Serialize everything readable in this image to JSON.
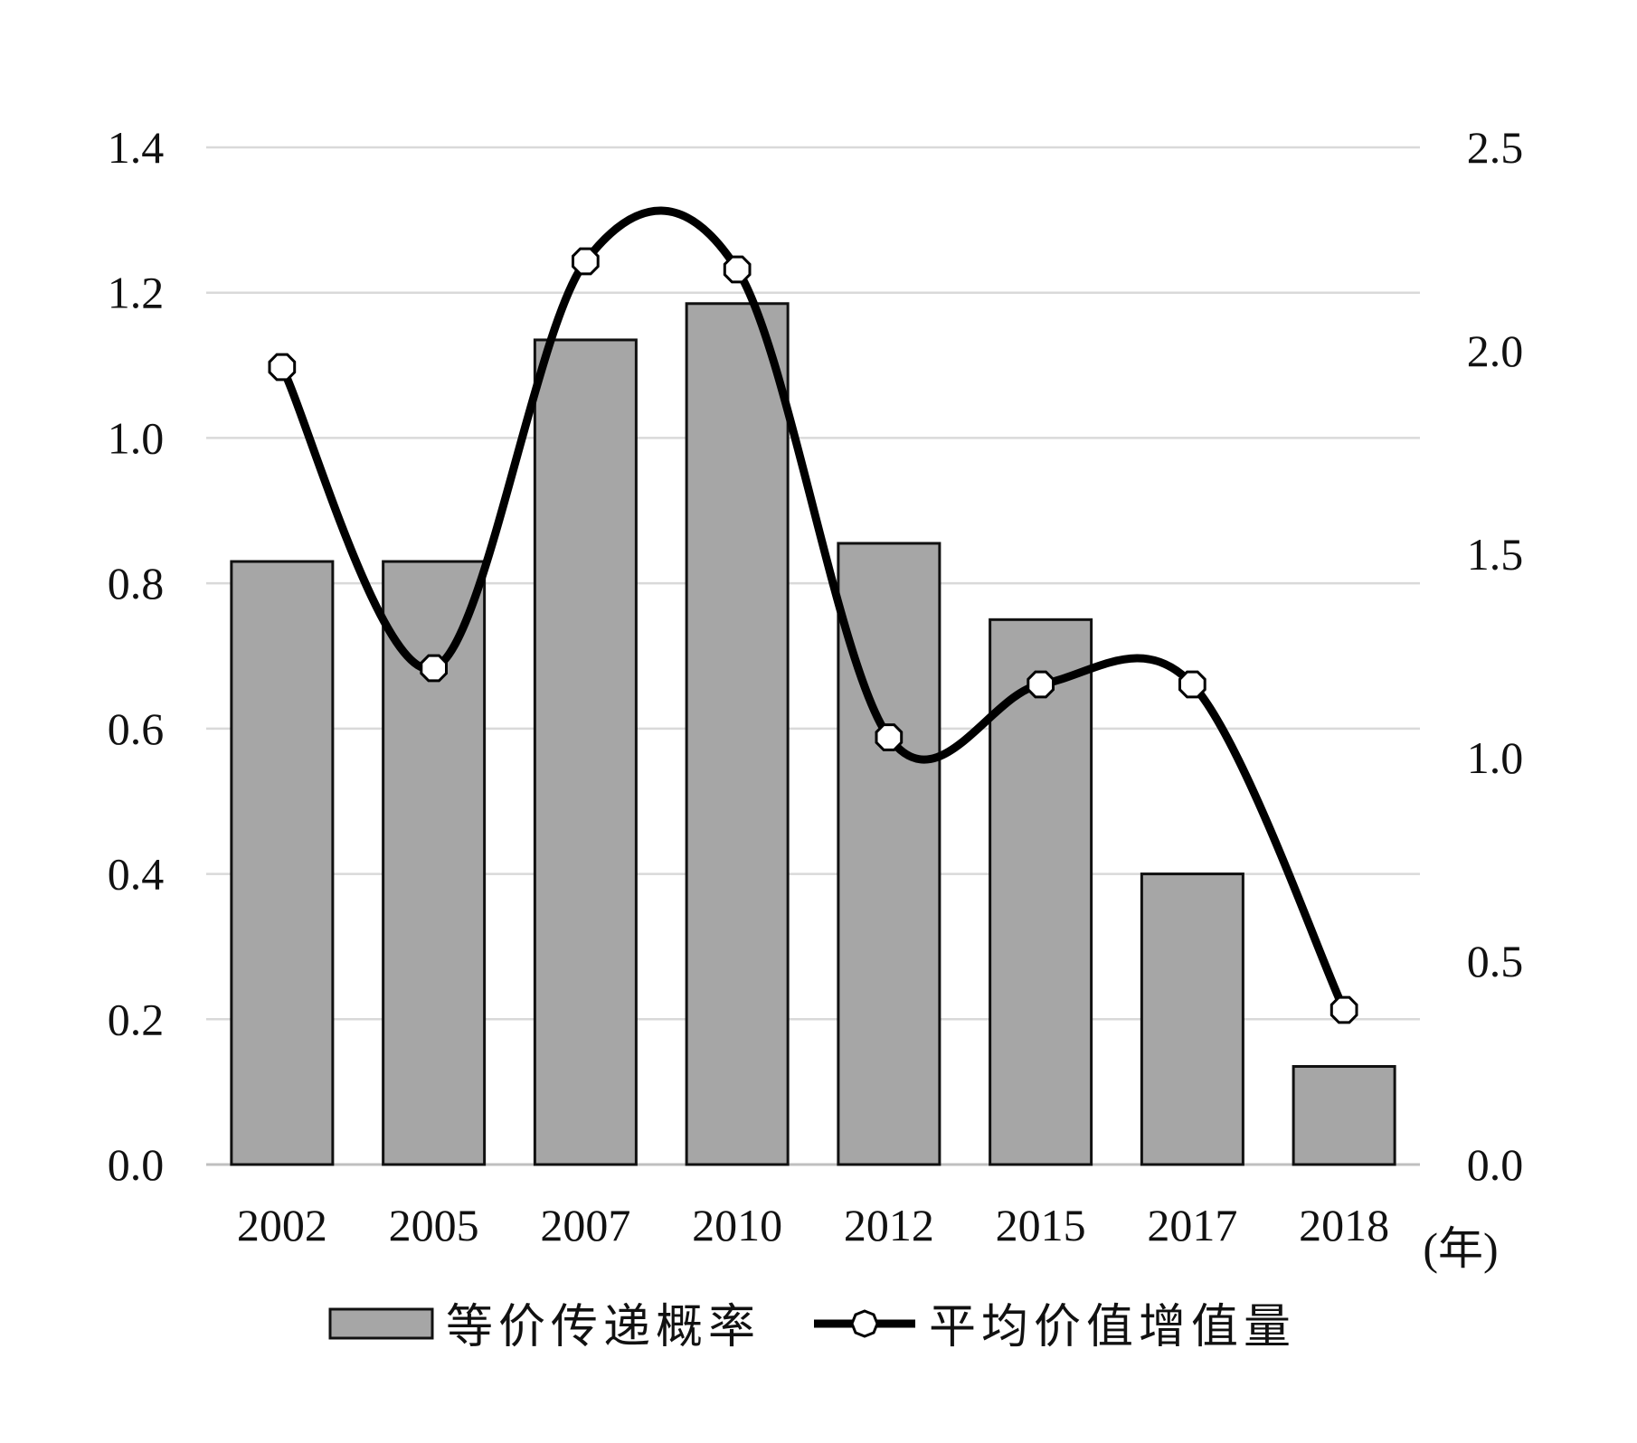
{
  "chart_data": {
    "type": "bar",
    "categories": [
      "2002",
      "2005",
      "2007",
      "2010",
      "2012",
      "2015",
      "2017",
      "2018"
    ],
    "x_unit_label": "(年)",
    "y_left": {
      "min": 0,
      "max": 1.4,
      "ticks": [
        "0.0",
        "0.2",
        "0.4",
        "0.6",
        "0.8",
        "1.0",
        "1.2",
        "1.4"
      ]
    },
    "y_right": {
      "min": 0,
      "max": 2.5,
      "ticks": [
        "0.0",
        "0.5",
        "1.0",
        "1.5",
        "2.0",
        "2.5"
      ]
    },
    "grid": true,
    "series": [
      {
        "name": "等价传递概率",
        "kind": "bar",
        "axis": "left",
        "values": [
          0.83,
          0.83,
          1.135,
          1.185,
          0.855,
          0.75,
          0.4,
          0.135
        ],
        "color": "#a6a6a6"
      },
      {
        "name": "平均价值增值量",
        "kind": "smooth-line",
        "axis": "right",
        "values": [
          1.96,
          1.22,
          2.22,
          2.2,
          1.05,
          1.18,
          1.18,
          0.38
        ],
        "color": "#000000"
      }
    ],
    "legend_position": "bottom"
  }
}
